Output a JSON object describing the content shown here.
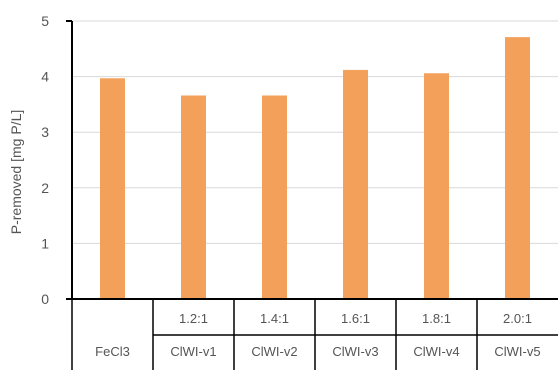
{
  "chart_data": {
    "type": "bar",
    "categories": [
      "FeCl3",
      "ClWI-v1",
      "ClWI-v2",
      "ClWI-v3",
      "ClWI-v4",
      "ClWI-v5"
    ],
    "ratios": [
      "",
      "1.2:1",
      "1.4:1",
      "1.6:1",
      "1.8:1",
      "2.0:1"
    ],
    "values": [
      3.97,
      3.66,
      3.66,
      4.12,
      4.06,
      4.71
    ],
    "ylabel": "P-removed [mg P/L]",
    "xlabel": "",
    "ylim": [
      0,
      5
    ],
    "yticks": [
      0,
      1,
      2,
      3,
      4,
      5
    ],
    "grid": true,
    "bar_color": "#F2A05A",
    "grid_color": "#D9D9D9",
    "axis_color": "#000000"
  }
}
